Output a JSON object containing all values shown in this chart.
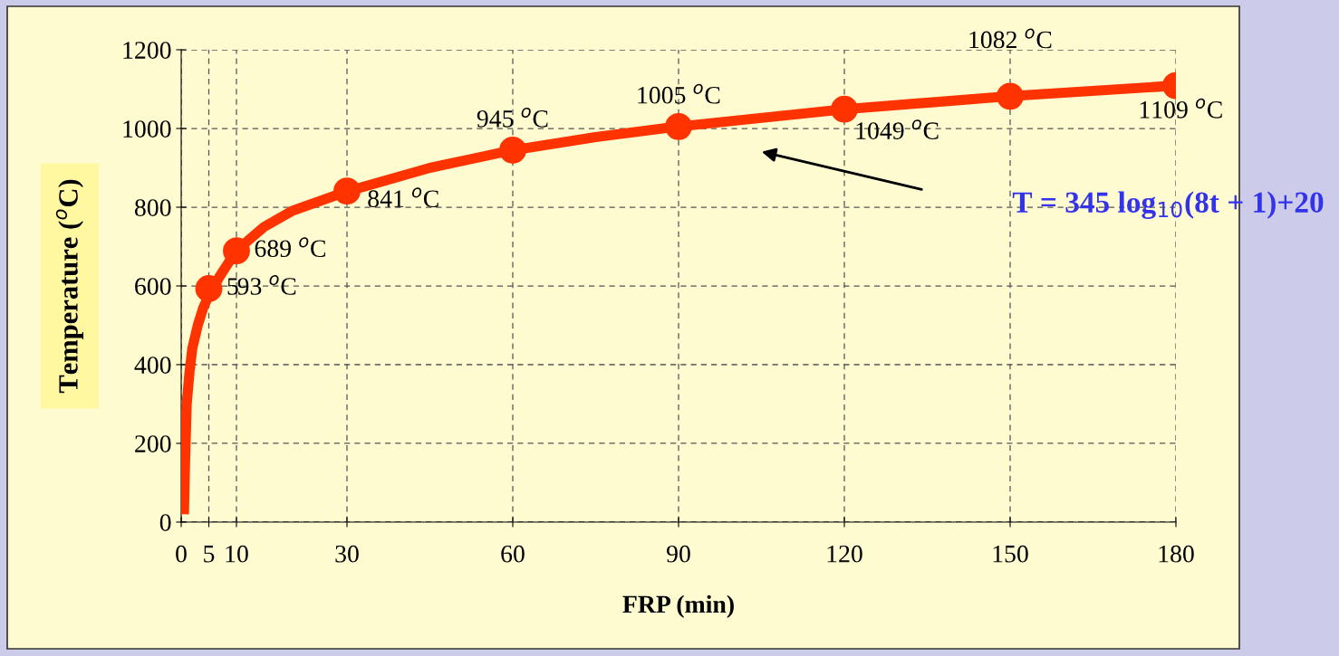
{
  "chart_data": {
    "type": "line",
    "xlabel": "FRP (min)",
    "ylabel": "Temperature ($^{o}$C)",
    "xlim": [
      0,
      180
    ],
    "ylim": [
      0,
      1200
    ],
    "xticks": [
      0,
      5,
      10,
      30,
      60,
      90,
      120,
      150,
      180
    ],
    "yticks": [
      0,
      200,
      400,
      600,
      800,
      1000,
      1200
    ],
    "grid": true,
    "line_style": "solid",
    "legend": false,
    "series": [
      {
        "color": "#ff3300",
        "marker": "none",
        "x": [
          0.5,
          0.7,
          1,
          1.5,
          2,
          3,
          4,
          5,
          7,
          10,
          15,
          20,
          30,
          45,
          60,
          75,
          90,
          120,
          150,
          180
        ],
        "values": [
          20,
          150,
          300,
          380,
          440,
          500,
          545,
          576,
          625,
          690,
          750,
          790,
          840,
          900,
          945,
          978,
          1005,
          1049,
          1082,
          1109
        ]
      },
      {
        "type": "scatter",
        "color": "#ff3300",
        "marker": "circle",
        "x": [
          5,
          10,
          30,
          60,
          90,
          120,
          150,
          180
        ],
        "values": [
          593,
          689,
          841,
          945,
          1005,
          1049,
          1082,
          1109
        ],
        "value_labels": [
          "593 $^{o}$C",
          "689 $^{o}$C",
          "841 $^{o}$C",
          "945 $^{o}$C",
          "1005 $^{o}$C",
          "1049 $^{o}$C",
          "1082 $^{o}$C",
          "1109 $^{o}$C"
        ]
      }
    ],
    "annotations": [
      "T = 345 log$_{10}$(8t + 1)+20"
    ]
  }
}
